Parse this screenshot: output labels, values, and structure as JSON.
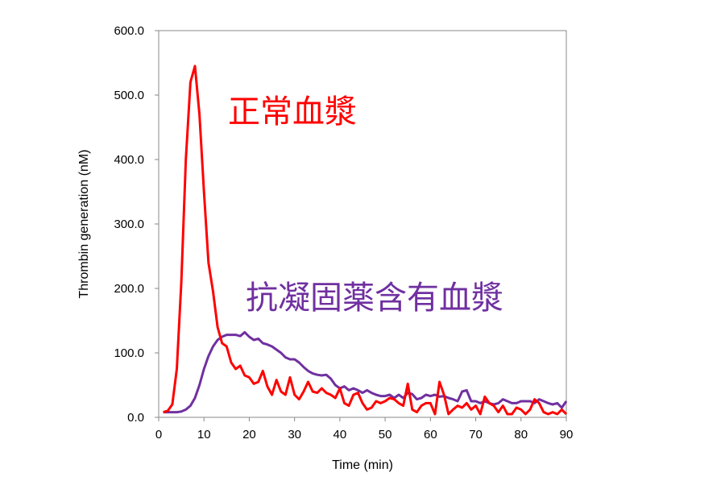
{
  "chart_data": {
    "type": "line",
    "title": "",
    "xlabel": "Time (min)",
    "ylabel": "Thrombin generation (nM)",
    "xlim": [
      0,
      90
    ],
    "ylim": [
      0,
      600
    ],
    "xticks": [
      "0",
      "10",
      "20",
      "30",
      "40",
      "50",
      "60",
      "70",
      "80",
      "90"
    ],
    "yticks": [
      "0.0",
      "100.0",
      "200.0",
      "300.0",
      "400.0",
      "500.0",
      "600.0"
    ],
    "grid": false,
    "legend": "none",
    "series": [
      {
        "name": "正常血漿",
        "color": "#ff0000",
        "x": [
          1,
          2,
          3,
          4,
          5,
          6,
          7,
          8,
          9,
          10,
          11,
          12,
          13,
          14,
          15,
          16,
          17,
          18,
          19,
          20,
          21,
          22,
          23,
          24,
          25,
          26,
          27,
          28,
          29,
          30,
          31,
          32,
          33,
          34,
          35,
          36,
          37,
          38,
          39,
          40,
          41,
          42,
          43,
          44,
          45,
          46,
          47,
          48,
          49,
          50,
          51,
          52,
          53,
          54,
          55,
          56,
          57,
          58,
          59,
          60,
          61,
          62,
          63,
          64,
          65,
          66,
          67,
          68,
          69,
          70,
          71,
          72,
          73,
          74,
          75,
          76,
          77,
          78,
          79,
          80,
          81,
          82,
          83,
          84,
          85,
          86,
          87,
          88,
          89,
          90
        ],
        "y": [
          8,
          10,
          20,
          75,
          210,
          400,
          520,
          545,
          470,
          350,
          240,
          195,
          140,
          115,
          110,
          85,
          75,
          80,
          65,
          62,
          52,
          55,
          72,
          48,
          35,
          58,
          40,
          35,
          62,
          35,
          28,
          40,
          55,
          40,
          38,
          45,
          38,
          35,
          30,
          45,
          22,
          18,
          35,
          38,
          22,
          12,
          15,
          25,
          22,
          25,
          30,
          28,
          22,
          18,
          52,
          12,
          8,
          18,
          22,
          22,
          5,
          55,
          35,
          5,
          12,
          18,
          15,
          22,
          12,
          18,
          5,
          32,
          22,
          18,
          8,
          18,
          5,
          5,
          15,
          12,
          5,
          12,
          28,
          22,
          8,
          5,
          8,
          5,
          12,
          5
        ]
      },
      {
        "name": "抗凝固薬含有血漿",
        "color": "#7030a0",
        "x": [
          1,
          2,
          3,
          4,
          5,
          6,
          7,
          8,
          9,
          10,
          11,
          12,
          13,
          14,
          15,
          16,
          17,
          18,
          19,
          20,
          21,
          22,
          23,
          24,
          25,
          26,
          27,
          28,
          29,
          30,
          31,
          32,
          33,
          34,
          35,
          36,
          37,
          38,
          39,
          40,
          41,
          42,
          43,
          44,
          45,
          46,
          47,
          48,
          49,
          50,
          51,
          52,
          53,
          54,
          55,
          56,
          57,
          58,
          59,
          60,
          61,
          62,
          63,
          64,
          65,
          66,
          67,
          68,
          69,
          70,
          71,
          72,
          73,
          74,
          75,
          76,
          77,
          78,
          79,
          80,
          81,
          82,
          83,
          84,
          85,
          86,
          87,
          88,
          89,
          90
        ],
        "y": [
          8,
          8,
          8,
          8,
          9,
          12,
          18,
          30,
          50,
          75,
          95,
          110,
          120,
          125,
          128,
          128,
          128,
          126,
          132,
          125,
          120,
          122,
          115,
          113,
          110,
          105,
          100,
          93,
          90,
          90,
          85,
          78,
          72,
          68,
          66,
          65,
          66,
          60,
          50,
          45,
          48,
          42,
          45,
          42,
          38,
          42,
          38,
          35,
          33,
          33,
          35,
          30,
          35,
          30,
          38,
          36,
          28,
          30,
          35,
          33,
          35,
          32,
          33,
          30,
          28,
          25,
          40,
          42,
          25,
          25,
          22,
          25,
          22,
          20,
          22,
          28,
          25,
          22,
          22,
          25,
          25,
          25,
          22,
          28,
          25,
          22,
          20,
          22,
          15,
          25
        ]
      }
    ]
  }
}
